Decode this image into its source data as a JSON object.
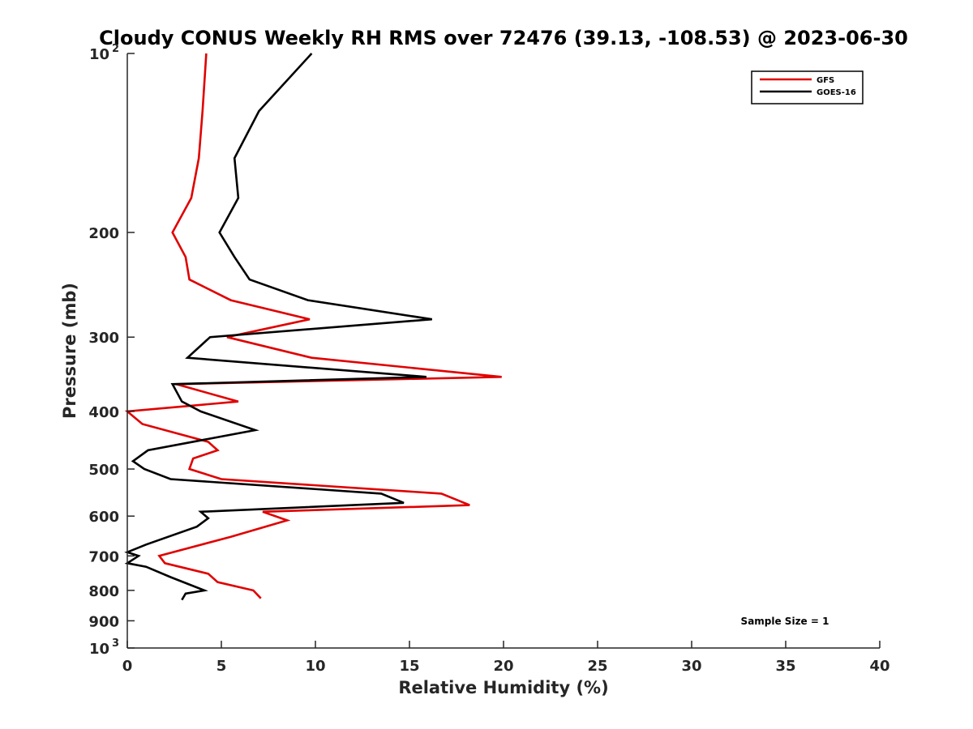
{
  "chart_data": {
    "type": "line",
    "title": "Cloudy CONUS Weekly RH RMS over 72476 (39.13, -108.53) @ 2023-06-30",
    "xlabel": "Relative Humidity (%)",
    "ylabel": "Pressure (mb)",
    "xlim": [
      0,
      40
    ],
    "ylim": [
      1000,
      100
    ],
    "yscale": "log",
    "y_reversed": true,
    "x_ticks": [
      "0",
      "5",
      "10",
      "15",
      "20",
      "25",
      "30",
      "35",
      "40"
    ],
    "y_ticks": [
      {
        "value": 100,
        "base": "10",
        "exp": "2"
      },
      {
        "value": 200,
        "label": "200"
      },
      {
        "value": 300,
        "label": "300"
      },
      {
        "value": 400,
        "label": "400"
      },
      {
        "value": 500,
        "label": "500"
      },
      {
        "value": 600,
        "label": "600"
      },
      {
        "value": 700,
        "label": "700"
      },
      {
        "value": 800,
        "label": "800"
      },
      {
        "value": 900,
        "label": "900"
      },
      {
        "value": 1000,
        "base": "10",
        "exp": "3"
      }
    ],
    "legend_position": "top-right",
    "grid": false,
    "annotation": "Sample Size = 1",
    "series": [
      {
        "name": "GFS",
        "color": "#e00000",
        "points": [
          [
            4.2,
            100
          ],
          [
            4.0,
            125
          ],
          [
            3.8,
            150
          ],
          [
            3.4,
            175
          ],
          [
            2.4,
            200
          ],
          [
            3.1,
            220
          ],
          [
            3.3,
            240
          ],
          [
            5.5,
            260
          ],
          [
            9.7,
            280
          ],
          [
            5.3,
            300
          ],
          [
            9.8,
            325
          ],
          [
            19.9,
            350
          ],
          [
            2.6,
            360
          ],
          [
            5.9,
            385
          ],
          [
            0.0,
            400
          ],
          [
            0.8,
            420
          ],
          [
            4.3,
            450
          ],
          [
            4.8,
            465
          ],
          [
            3.5,
            480
          ],
          [
            3.3,
            500
          ],
          [
            5.0,
            520
          ],
          [
            16.7,
            550
          ],
          [
            18.2,
            575
          ],
          [
            7.2,
            590
          ],
          [
            8.5,
            610
          ],
          [
            5.5,
            650
          ],
          [
            1.7,
            700
          ],
          [
            2.0,
            720
          ],
          [
            4.3,
            750
          ],
          [
            4.8,
            775
          ],
          [
            6.7,
            800
          ],
          [
            7.1,
            825
          ]
        ]
      },
      {
        "name": "GOES-16",
        "color": "#000000",
        "points": [
          [
            9.8,
            100
          ],
          [
            7.0,
            125
          ],
          [
            5.7,
            150
          ],
          [
            5.9,
            175
          ],
          [
            4.9,
            200
          ],
          [
            5.7,
            220
          ],
          [
            6.5,
            240
          ],
          [
            9.6,
            260
          ],
          [
            16.2,
            280
          ],
          [
            4.4,
            300
          ],
          [
            3.2,
            325
          ],
          [
            15.9,
            350
          ],
          [
            2.4,
            360
          ],
          [
            2.9,
            385
          ],
          [
            3.9,
            400
          ],
          [
            6.8,
            430
          ],
          [
            1.1,
            465
          ],
          [
            0.3,
            485
          ],
          [
            0.9,
            500
          ],
          [
            2.3,
            520
          ],
          [
            13.5,
            550
          ],
          [
            14.7,
            570
          ],
          [
            3.9,
            590
          ],
          [
            4.3,
            605
          ],
          [
            3.7,
            625
          ],
          [
            1.0,
            670
          ],
          [
            0.0,
            690
          ],
          [
            0.6,
            700
          ],
          [
            0.0,
            720
          ],
          [
            1.0,
            730
          ],
          [
            2.3,
            760
          ],
          [
            4.1,
            800
          ],
          [
            3.1,
            810
          ],
          [
            2.9,
            830
          ]
        ]
      }
    ]
  }
}
